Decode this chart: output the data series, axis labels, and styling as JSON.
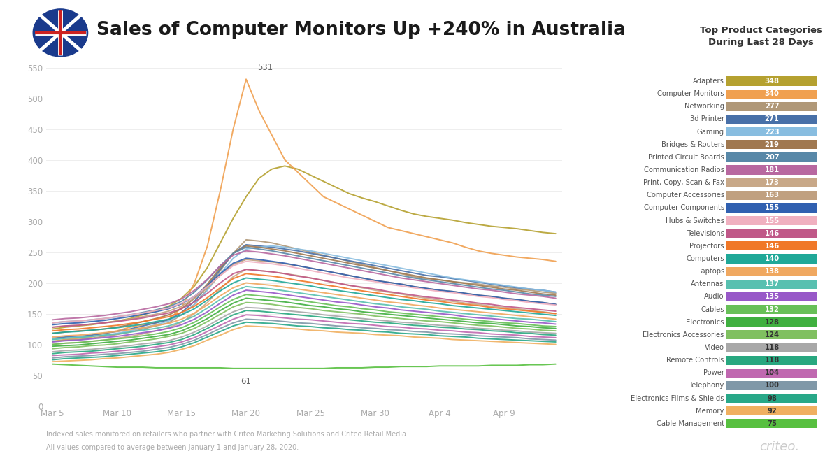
{
  "title": "Sales of Computer Monitors Up +240% in Australia",
  "background_color": "#ffffff",
  "footnote1": "Indexed sales monitored on retailers who partner with Criteo Marketing Solutions and Criteo Retail Media.",
  "footnote2": "All values compared to average between January 1 and January 28, 2020.",
  "watermark": "criteo.",
  "legend_title": "Top Product Categories\nDuring Last 28 Days",
  "x_labels": [
    "Mar 5",
    "Mar 10",
    "Mar 15",
    "Mar 20",
    "Mar 25",
    "Mar 30",
    "Apr 4",
    "Apr 9"
  ],
  "x_tick_days": [
    0,
    5,
    10,
    15,
    20,
    25,
    30,
    35
  ],
  "n_points": 40,
  "ylim": [
    0,
    560
  ],
  "yticks": [
    0,
    50,
    100,
    150,
    200,
    250,
    300,
    350,
    400,
    450,
    500,
    550
  ],
  "categories": [
    {
      "name": "Adapters",
      "value": 348,
      "color": "#b5a130"
    },
    {
      "name": "Computer Monitors",
      "value": 340,
      "color": "#f0a050"
    },
    {
      "name": "Networking",
      "value": 277,
      "color": "#b09878"
    },
    {
      "name": "3d Printer",
      "value": 271,
      "color": "#4870a8"
    },
    {
      "name": "Gaming",
      "value": 223,
      "color": "#88bde0"
    },
    {
      "name": "Bridges & Routers",
      "value": 219,
      "color": "#a07850"
    },
    {
      "name": "Printed Circuit Boards",
      "value": 207,
      "color": "#5888a8"
    },
    {
      "name": "Communication Radios",
      "value": 181,
      "color": "#b868a0"
    },
    {
      "name": "Print, Copy, Scan & Fax",
      "value": 173,
      "color": "#c8a888"
    },
    {
      "name": "Computer Accessories",
      "value": 163,
      "color": "#c0a080"
    },
    {
      "name": "Computer Components",
      "value": 155,
      "color": "#3060b0"
    },
    {
      "name": "Hubs & Switches",
      "value": 155,
      "color": "#f0b0c0"
    },
    {
      "name": "Televisions",
      "value": 146,
      "color": "#c05888"
    },
    {
      "name": "Projectors",
      "value": 146,
      "color": "#f07828"
    },
    {
      "name": "Computers",
      "value": 140,
      "color": "#20a898"
    },
    {
      "name": "Laptops",
      "value": 138,
      "color": "#f0a860"
    },
    {
      "name": "Antennas",
      "value": 137,
      "color": "#58c0b0"
    },
    {
      "name": "Audio",
      "value": 135,
      "color": "#9858c8"
    },
    {
      "name": "Cables",
      "value": 132,
      "color": "#68c058"
    },
    {
      "name": "Electronics",
      "value": 128,
      "color": "#40b040"
    },
    {
      "name": "Electronics Accessories",
      "value": 124,
      "color": "#80c060"
    },
    {
      "name": "Video",
      "value": 118,
      "color": "#a8a8a8"
    },
    {
      "name": "Remote Controls",
      "value": 118,
      "color": "#28a880"
    },
    {
      "name": "Power",
      "value": 104,
      "color": "#c068b0"
    },
    {
      "name": "Telephony",
      "value": 100,
      "color": "#8098a8"
    },
    {
      "name": "Electronics Films & Shields",
      "value": 98,
      "color": "#28a888"
    },
    {
      "name": "Memory",
      "value": 92,
      "color": "#f0b060"
    },
    {
      "name": "Cable Management",
      "value": 75,
      "color": "#58c040"
    }
  ],
  "series": {
    "Computer Monitors": [
      105,
      108,
      110,
      112,
      118,
      122,
      128,
      132,
      135,
      140,
      160,
      200,
      260,
      350,
      450,
      531,
      480,
      440,
      400,
      380,
      360,
      340,
      330,
      320,
      310,
      300,
      290,
      285,
      280,
      275,
      270,
      265,
      258,
      252,
      248,
      245,
      242,
      240,
      238,
      235
    ],
    "Adapters": [
      125,
      128,
      130,
      132,
      135,
      138,
      142,
      148,
      155,
      162,
      175,
      195,
      225,
      265,
      305,
      340,
      370,
      385,
      390,
      385,
      375,
      365,
      355,
      345,
      338,
      332,
      325,
      318,
      312,
      308,
      305,
      302,
      298,
      295,
      292,
      290,
      288,
      285,
      282,
      280
    ],
    "Networking": [
      105,
      107,
      108,
      110,
      113,
      116,
      120,
      125,
      130,
      135,
      148,
      165,
      190,
      220,
      248,
      270,
      268,
      265,
      260,
      255,
      250,
      245,
      240,
      235,
      230,
      225,
      220,
      215,
      210,
      207,
      205,
      202,
      200,
      198,
      195,
      193,
      190,
      188,
      185,
      183
    ],
    "3d Printer": [
      110,
      112,
      113,
      115,
      118,
      121,
      125,
      130,
      135,
      140,
      152,
      170,
      195,
      222,
      248,
      262,
      260,
      258,
      255,
      252,
      248,
      244,
      240,
      236,
      232,
      228,
      224,
      220,
      216,
      212,
      210,
      207,
      204,
      201,
      198,
      195,
      192,
      190,
      188,
      185
    ],
    "Gaming": [
      108,
      110,
      112,
      113,
      115,
      118,
      122,
      127,
      132,
      138,
      148,
      165,
      188,
      215,
      240,
      255,
      258,
      260,
      258,
      255,
      252,
      248,
      244,
      240,
      236,
      232,
      228,
      224,
      220,
      216,
      212,
      208,
      205,
      202,
      199,
      196,
      193,
      190,
      188,
      185
    ],
    "Bridges & Routers": [
      118,
      120,
      122,
      123,
      125,
      128,
      132,
      137,
      142,
      148,
      158,
      175,
      198,
      225,
      248,
      260,
      258,
      255,
      252,
      248,
      244,
      240,
      236,
      232,
      228,
      224,
      220,
      216,
      212,
      208,
      205,
      202,
      199,
      196,
      193,
      190,
      188,
      185,
      182,
      180
    ],
    "Printed Circuit Boards": [
      135,
      137,
      138,
      140,
      142,
      145,
      148,
      152,
      156,
      161,
      170,
      185,
      205,
      228,
      248,
      258,
      255,
      252,
      248,
      244,
      240,
      236,
      232,
      228,
      224,
      220,
      216,
      212,
      208,
      205,
      202,
      199,
      196,
      193,
      190,
      188,
      185,
      182,
      180,
      178
    ],
    "Communication Radios": [
      140,
      142,
      143,
      145,
      147,
      150,
      153,
      157,
      161,
      166,
      174,
      188,
      206,
      228,
      245,
      252,
      250,
      247,
      244,
      240,
      236,
      232,
      228,
      224,
      220,
      216,
      212,
      208,
      205,
      202,
      199,
      196,
      193,
      190,
      188,
      185,
      182,
      180,
      178,
      175
    ],
    "Print, Copy, Scan & Fax": [
      100,
      102,
      103,
      105,
      107,
      110,
      113,
      117,
      122,
      127,
      136,
      150,
      168,
      190,
      210,
      222,
      220,
      218,
      215,
      212,
      208,
      204,
      200,
      196,
      192,
      188,
      185,
      182,
      178,
      175,
      172,
      170,
      167,
      165,
      162,
      160,
      158,
      155,
      153,
      150
    ],
    "Computer Accessories": [
      128,
      130,
      131,
      133,
      135,
      138,
      141,
      145,
      149,
      154,
      162,
      175,
      192,
      212,
      230,
      238,
      236,
      234,
      231,
      228,
      224,
      220,
      216,
      212,
      208,
      204,
      201,
      198,
      194,
      191,
      188,
      186,
      183,
      180,
      178,
      175,
      173,
      170,
      168,
      165
    ],
    "Computer Components": [
      132,
      134,
      135,
      137,
      139,
      142,
      145,
      149,
      153,
      158,
      166,
      178,
      195,
      215,
      232,
      240,
      238,
      235,
      232,
      228,
      224,
      220,
      216,
      212,
      208,
      204,
      201,
      198,
      194,
      191,
      188,
      186,
      183,
      180,
      178,
      175,
      173,
      170,
      168,
      165
    ],
    "Hubs & Switches": [
      135,
      137,
      138,
      140,
      142,
      145,
      148,
      151,
      155,
      159,
      167,
      178,
      194,
      212,
      228,
      235,
      233,
      231,
      228,
      224,
      220,
      216,
      212,
      208,
      205,
      202,
      198,
      195,
      192,
      189,
      186,
      184,
      181,
      178,
      176,
      173,
      171,
      168,
      166,
      164
    ],
    "Televisions": [
      128,
      130,
      131,
      133,
      135,
      137,
      140,
      143,
      147,
      151,
      158,
      169,
      183,
      200,
      215,
      222,
      220,
      218,
      215,
      211,
      208,
      204,
      200,
      196,
      193,
      190,
      186,
      183,
      180,
      177,
      175,
      172,
      170,
      167,
      165,
      162,
      160,
      158,
      156,
      154
    ],
    "Projectors": [
      122,
      124,
      125,
      127,
      129,
      131,
      134,
      137,
      141,
      145,
      152,
      162,
      176,
      192,
      207,
      215,
      213,
      211,
      208,
      204,
      201,
      197,
      194,
      190,
      187,
      184,
      181,
      178,
      175,
      172,
      170,
      167,
      165,
      163,
      160,
      158,
      156,
      154,
      152,
      150
    ],
    "Computers": [
      118,
      120,
      121,
      123,
      125,
      127,
      130,
      133,
      137,
      141,
      148,
      158,
      172,
      187,
      200,
      208,
      206,
      204,
      201,
      198,
      195,
      191,
      188,
      185,
      182,
      179,
      176,
      173,
      171,
      168,
      166,
      163,
      161,
      159,
      157,
      155,
      153,
      151,
      149,
      147
    ],
    "Laptops": [
      112,
      114,
      115,
      117,
      119,
      121,
      124,
      127,
      131,
      134,
      141,
      151,
      164,
      179,
      192,
      200,
      198,
      196,
      193,
      190,
      187,
      184,
      181,
      178,
      175,
      172,
      169,
      167,
      164,
      162,
      159,
      157,
      155,
      153,
      151,
      149,
      147,
      145,
      143,
      141
    ],
    "Antennas": [
      108,
      110,
      111,
      113,
      115,
      117,
      120,
      123,
      126,
      130,
      137,
      146,
      159,
      173,
      186,
      194,
      192,
      190,
      187,
      184,
      181,
      178,
      175,
      172,
      169,
      166,
      164,
      161,
      159,
      157,
      154,
      152,
      150,
      148,
      146,
      144,
      142,
      141,
      139,
      137
    ],
    "Audio": [
      104,
      106,
      107,
      109,
      111,
      113,
      116,
      119,
      122,
      126,
      132,
      141,
      153,
      167,
      180,
      188,
      186,
      184,
      181,
      178,
      175,
      172,
      169,
      167,
      164,
      161,
      159,
      156,
      154,
      152,
      150,
      148,
      145,
      143,
      142,
      140,
      138,
      136,
      135,
      133
    ],
    "Cables": [
      100,
      102,
      103,
      105,
      107,
      109,
      111,
      114,
      117,
      121,
      127,
      136,
      148,
      161,
      173,
      181,
      179,
      177,
      175,
      172,
      169,
      166,
      163,
      161,
      158,
      156,
      153,
      151,
      149,
      147,
      145,
      143,
      141,
      139,
      137,
      135,
      134,
      132,
      130,
      129
    ],
    "Electronics": [
      97,
      98,
      99,
      101,
      103,
      105,
      107,
      110,
      113,
      116,
      122,
      131,
      142,
      155,
      167,
      175,
      173,
      171,
      169,
      166,
      163,
      161,
      158,
      156,
      153,
      151,
      149,
      147,
      145,
      143,
      141,
      139,
      137,
      135,
      134,
      132,
      130,
      129,
      127,
      126
    ],
    "Electronics Accessories": [
      93,
      95,
      96,
      98,
      99,
      101,
      104,
      106,
      109,
      113,
      118,
      126,
      137,
      149,
      161,
      168,
      167,
      165,
      162,
      160,
      158,
      155,
      153,
      151,
      149,
      146,
      144,
      142,
      140,
      138,
      137,
      135,
      133,
      131,
      130,
      128,
      126,
      125,
      123,
      122
    ],
    "Video": [
      88,
      90,
      91,
      92,
      94,
      96,
      98,
      101,
      103,
      106,
      112,
      120,
      130,
      142,
      153,
      160,
      159,
      157,
      155,
      153,
      151,
      148,
      146,
      144,
      142,
      140,
      138,
      136,
      135,
      133,
      131,
      130,
      128,
      126,
      125,
      123,
      122,
      120,
      119,
      118
    ],
    "Remote Controls": [
      85,
      87,
      88,
      89,
      91,
      93,
      95,
      97,
      100,
      103,
      108,
      116,
      126,
      137,
      148,
      155,
      154,
      152,
      150,
      148,
      146,
      144,
      142,
      140,
      138,
      136,
      135,
      133,
      131,
      130,
      128,
      127,
      125,
      124,
      122,
      121,
      119,
      118,
      116,
      115
    ],
    "Power": [
      82,
      83,
      84,
      86,
      87,
      89,
      91,
      93,
      96,
      99,
      104,
      111,
      121,
      131,
      141,
      148,
      147,
      145,
      143,
      141,
      140,
      138,
      136,
      134,
      133,
      131,
      129,
      128,
      126,
      125,
      123,
      122,
      120,
      119,
      117,
      116,
      115,
      113,
      112,
      111
    ],
    "Telephony": [
      78,
      80,
      81,
      82,
      84,
      85,
      87,
      89,
      92,
      95,
      100,
      107,
      116,
      126,
      135,
      141,
      140,
      139,
      137,
      135,
      134,
      132,
      130,
      129,
      127,
      126,
      124,
      123,
      121,
      120,
      118,
      117,
      116,
      114,
      113,
      112,
      111,
      109,
      108,
      107
    ],
    "Electronics Films & Shields": [
      75,
      77,
      78,
      79,
      80,
      82,
      84,
      86,
      88,
      91,
      96,
      103,
      112,
      121,
      130,
      136,
      135,
      134,
      132,
      130,
      129,
      127,
      126,
      124,
      123,
      121,
      120,
      118,
      117,
      116,
      114,
      113,
      112,
      110,
      109,
      108,
      107,
      106,
      105,
      104
    ],
    "Memory": [
      72,
      73,
      74,
      75,
      77,
      78,
      80,
      82,
      84,
      87,
      92,
      98,
      107,
      115,
      124,
      130,
      129,
      128,
      126,
      125,
      123,
      122,
      120,
      119,
      118,
      116,
      115,
      114,
      112,
      111,
      110,
      108,
      107,
      106,
      105,
      104,
      103,
      102,
      101,
      100
    ],
    "Cable Management": [
      68,
      67,
      66,
      65,
      64,
      63,
      63,
      63,
      62,
      62,
      62,
      62,
      62,
      62,
      61,
      61,
      61,
      61,
      61,
      61,
      61,
      61,
      62,
      62,
      62,
      63,
      63,
      64,
      64,
      64,
      65,
      65,
      65,
      65,
      66,
      66,
      66,
      67,
      67,
      68
    ]
  },
  "peak_annotation": {
    "series": "Computer Monitors",
    "x_idx": 15,
    "text": "531"
  },
  "low_annotation": {
    "series": "Cable Management",
    "x_idx": 15,
    "text": "61"
  }
}
